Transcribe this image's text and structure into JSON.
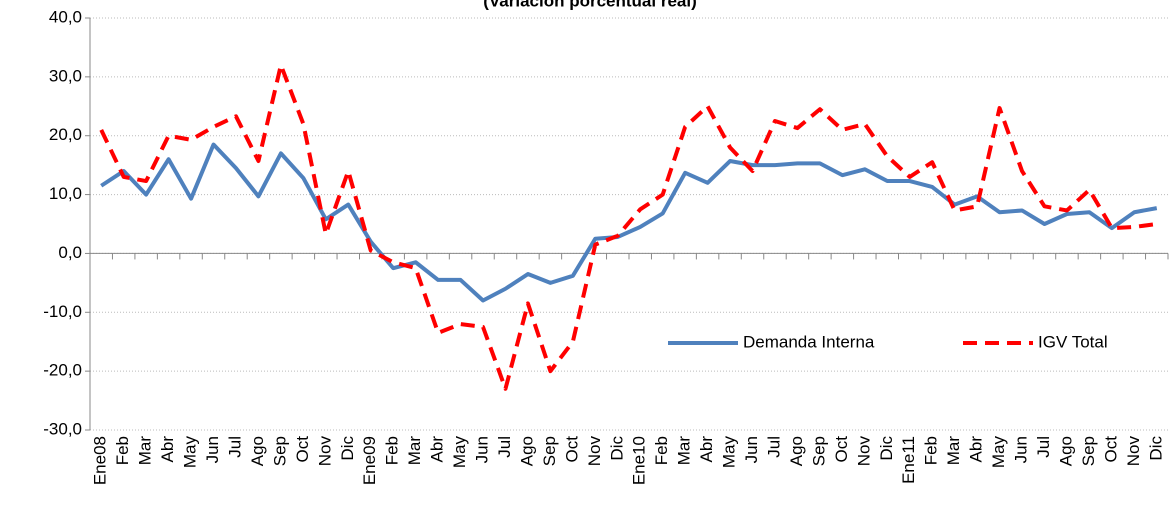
{
  "chart_data": {
    "type": "line",
    "subtitle": "(Variación porcentual real)",
    "categories": [
      "Ene08",
      "Feb",
      "Mar",
      "Abr",
      "May",
      "Jun",
      "Jul",
      "Ago",
      "Sep",
      "Oct",
      "Nov",
      "Dic",
      "Ene09",
      "Feb",
      "Mar",
      "Abr",
      "May",
      "Jun",
      "Jul",
      "Ago",
      "Sep",
      "Oct",
      "Nov",
      "Dic",
      "Ene10",
      "Feb",
      "Mar",
      "Abr",
      "May",
      "Jun",
      "Jul",
      "Ago",
      "Sep",
      "Oct",
      "Nov",
      "Dic",
      "Ene11",
      "Feb",
      "Mar",
      "Abr",
      "May",
      "Jun",
      "Jul",
      "Ago",
      "Sep",
      "Oct",
      "Nov",
      "Dic"
    ],
    "series": [
      {
        "name": "Demanda Interna",
        "color": "#4f81bd",
        "dash": false,
        "values": [
          11.5,
          14,
          10,
          16,
          9.3,
          18.5,
          14.5,
          9.7,
          17,
          12.8,
          5.8,
          8.3,
          2,
          -2.5,
          -1.5,
          -4.5,
          -4.5,
          -8,
          -6,
          -3.5,
          -5,
          -3.8,
          2.5,
          2.8,
          4.5,
          6.8,
          13.7,
          12,
          15.7,
          15,
          15,
          15.3,
          15.3,
          13.3,
          14.3,
          12.3,
          12.3,
          11.3,
          8.3,
          9.7,
          7,
          7.3,
          5,
          6.7,
          7,
          4.3,
          7,
          7.7
        ]
      },
      {
        "name": "IGV Total",
        "color": "#ff0000",
        "dash": true,
        "values": [
          21,
          13,
          12.3,
          20,
          19.3,
          21.5,
          23.3,
          15.7,
          32,
          22,
          3.3,
          14,
          0.5,
          -1.5,
          -2.5,
          -13.5,
          -12,
          -12.5,
          -23,
          -8.5,
          -20,
          -15,
          1.5,
          3,
          7.5,
          10,
          21.5,
          25,
          18,
          14,
          22.5,
          21.3,
          24.5,
          21,
          22,
          16.5,
          13,
          15.5,
          7.3,
          8,
          24.7,
          14,
          8,
          7.3,
          10.8,
          4.3,
          4.5,
          5
        ]
      }
    ],
    "ylim": [
      -30,
      40
    ],
    "yticks": [
      {
        "value": -30,
        "label": "-30,0"
      },
      {
        "value": -20,
        "label": "-20,0"
      },
      {
        "value": -10,
        "label": "-10,0"
      },
      {
        "value": 0,
        "label": "0,0"
      },
      {
        "value": 10,
        "label": "10,0"
      },
      {
        "value": 20,
        "label": "20,0"
      },
      {
        "value": 30,
        "label": "30,0"
      },
      {
        "value": 40,
        "label": "40,0"
      }
    ],
    "grid": true
  }
}
